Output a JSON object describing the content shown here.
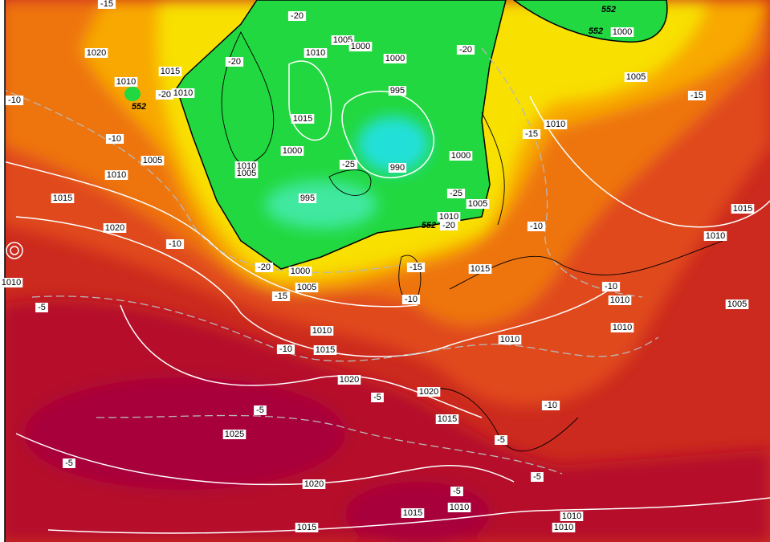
{
  "labels": [
    "-15",
    "-20",
    "1005",
    "1000",
    "1010",
    "1000",
    "-20",
    "552",
    "552",
    "1000",
    "1020",
    "-20",
    "1015",
    "1010",
    "-20",
    "1010",
    "552",
    "-10",
    "995",
    "1005",
    "-15",
    "1015",
    "1010",
    "-15",
    "-10",
    "1000",
    "1005",
    "1000",
    "-25",
    "990",
    "1010",
    "1005",
    "1010",
    "-25",
    "995",
    "1015",
    "1005",
    "1010",
    "1015",
    "552",
    "-20",
    "-10",
    "1020",
    "1010",
    "-10",
    "-20",
    "1000",
    "-15",
    "1015",
    "1010",
    "1005",
    "-10",
    "-15",
    "-10",
    "1010",
    "-5",
    "1005",
    "1010",
    "1010",
    "-10",
    "1015",
    "1010",
    "1020",
    "-5",
    "1020",
    "-10",
    "-5",
    "1015",
    "1025",
    "-5",
    "-5",
    "1020",
    "-5",
    "-5",
    "1010",
    "1015",
    "1010",
    "1015",
    "1010"
  ]
}
